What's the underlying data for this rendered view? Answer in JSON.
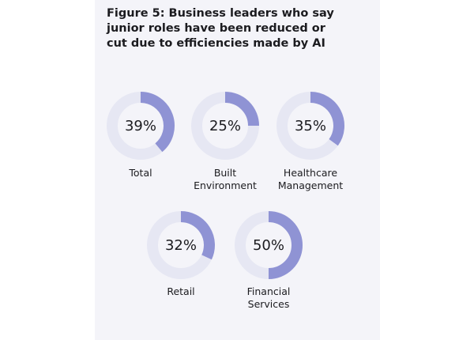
{
  "chart_data": {
    "type": "donut",
    "title": "Figure 5: Business leaders who say junior roles have been reduced or cut due to efficiencies made by AI",
    "unit": "%",
    "items": [
      {
        "label": "Total",
        "value": 39,
        "display": "39%"
      },
      {
        "label": "Built Environment",
        "value": 25,
        "display": "25%"
      },
      {
        "label": "Healthcare Management",
        "value": 35,
        "display": "35%"
      },
      {
        "label": "Retail",
        "value": 32,
        "display": "32%"
      },
      {
        "label": "Financial Services",
        "value": 50,
        "display": "50%"
      }
    ],
    "colors": {
      "segment": "#8f93d4",
      "track": "#e6e7f3"
    }
  }
}
